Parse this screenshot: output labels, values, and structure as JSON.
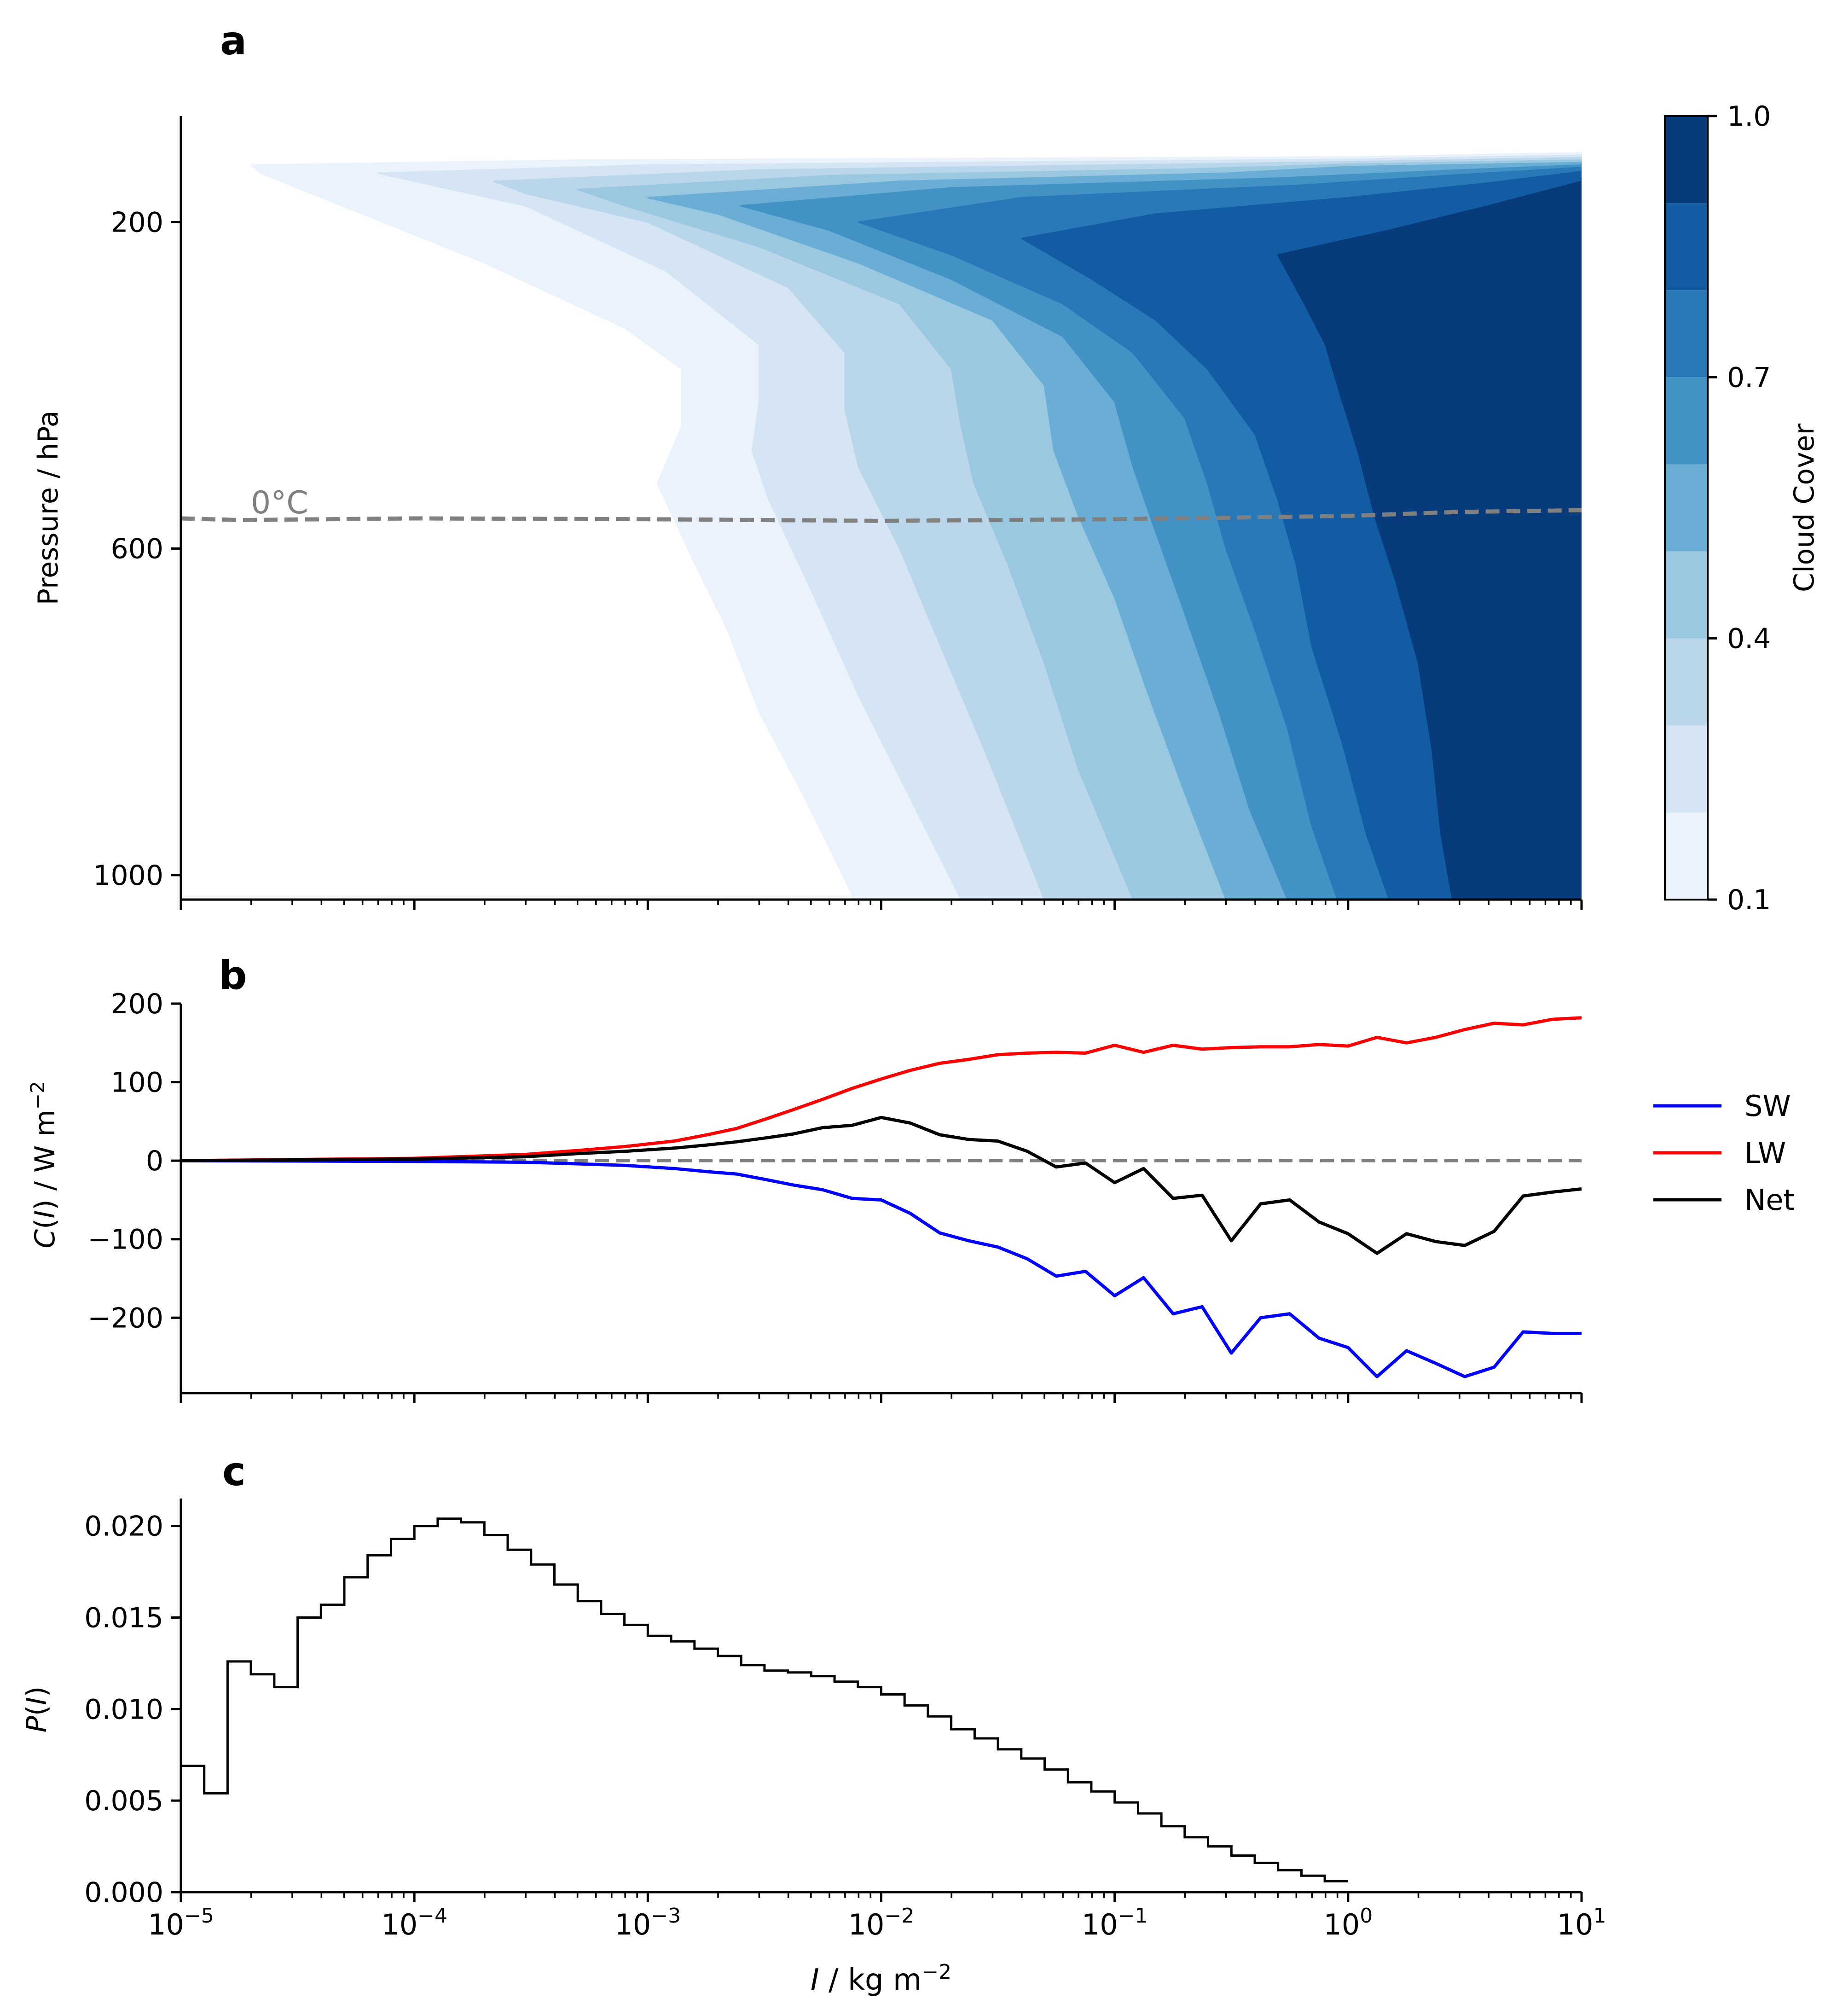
{
  "chart_data": [
    {
      "panel": "a",
      "type": "heatmap",
      "panel_label": "a",
      "ylabel": "Pressure / hPa",
      "yticks": [
        "200",
        "600",
        "1000"
      ],
      "ytick_values": [
        200,
        600,
        1000
      ],
      "ylim": [
        70,
        1030
      ],
      "xscale": "log",
      "xlim": [
        1e-05,
        10
      ],
      "colorbar": {
        "label": "Cloud Cover",
        "ticks": [
          "0.1",
          "0.4",
          "0.7",
          "1.0"
        ],
        "tick_values": [
          0.1,
          0.4,
          0.7,
          1.0
        ],
        "levels": [
          0.1,
          0.2,
          0.3,
          0.4,
          0.5,
          0.6,
          0.7,
          0.8,
          0.9,
          1.0
        ],
        "colors": [
          "#eaf2fb",
          "#d5e5f4",
          "#bad6eb",
          "#9ac8e0",
          "#6aaed6",
          "#4292c6",
          "#2979b9",
          "#125ca4",
          "#083b7b"
        ]
      },
      "freezing_label": "0°C",
      "freezing_line": {
        "x": [
          1e-05,
          1.78e-05,
          0.0001,
          0.001,
          0.01,
          0.1,
          1,
          3,
          10
        ],
        "p": [
          563,
          565,
          563,
          564,
          566,
          564,
          560,
          555,
          553
        ]
      },
      "contours": [
        {
          "level": 0.1,
          "left_edge": [
            [
              130,
              2e-05
            ],
            [
              140,
              2.2e-05
            ],
            [
              170,
              4e-05
            ],
            [
              250,
              0.0002
            ],
            [
              330,
              0.0008
            ],
            [
              380,
              0.0014
            ],
            [
              450,
              0.0014
            ],
            [
              520,
              0.0011
            ],
            [
              620,
              0.0016
            ],
            [
              700,
              0.0022
            ],
            [
              800,
              0.003
            ],
            [
              900,
              0.0046
            ],
            [
              1030,
              0.0077
            ]
          ],
          "top": [
            [
              130,
              2e-05
            ],
            [
              124,
              0.0005
            ],
            [
              122,
              0.02
            ],
            [
              120,
              1
            ],
            [
              115,
              10
            ]
          ]
        },
        {
          "level": 0.2,
          "left_edge": [
            [
              140,
              7e-05
            ],
            [
              150,
              0.0001
            ],
            [
              180,
              0.0003
            ],
            [
              260,
              0.0012
            ],
            [
              350,
              0.003
            ],
            [
              420,
              0.003
            ],
            [
              480,
              0.0028
            ],
            [
              540,
              0.0033
            ],
            [
              650,
              0.005
            ],
            [
              780,
              0.008
            ],
            [
              900,
              0.013
            ],
            [
              1030,
              0.022
            ]
          ],
          "top": [
            [
              140,
              7e-05
            ],
            [
              130,
              0.001
            ],
            [
              126,
              0.05
            ],
            [
              123,
              1
            ],
            [
              118,
              10
            ]
          ]
        },
        {
          "level": 0.3,
          "left_edge": [
            [
              150,
              0.00022
            ],
            [
              165,
              0.0003
            ],
            [
              200,
              0.001
            ],
            [
              280,
              0.004
            ],
            [
              360,
              0.007
            ],
            [
              430,
              0.007
            ],
            [
              500,
              0.008
            ],
            [
              600,
              0.012
            ],
            [
              720,
              0.018
            ],
            [
              850,
              0.028
            ],
            [
              1030,
              0.05
            ]
          ],
          "top": [
            [
              150,
              0.00022
            ],
            [
              136,
              0.003
            ],
            [
              130,
              0.1
            ],
            [
              126,
              1
            ],
            [
              121,
              10
            ]
          ]
        },
        {
          "level": 0.4,
          "left_edge": [
            [
              160,
              0.0005
            ],
            [
              180,
              0.0008
            ],
            [
              230,
              0.003
            ],
            [
              300,
              0.012
            ],
            [
              380,
              0.02
            ],
            [
              450,
              0.022
            ],
            [
              520,
              0.025
            ],
            [
              620,
              0.035
            ],
            [
              740,
              0.05
            ],
            [
              870,
              0.07
            ],
            [
              1030,
              0.12
            ]
          ],
          "top": [
            [
              160,
              0.0005
            ],
            [
              143,
              0.006
            ],
            [
              135,
              0.2
            ],
            [
              129,
              1
            ],
            [
              124,
              10
            ]
          ]
        },
        {
          "level": 0.5,
          "left_edge": [
            [
              170,
              0.001
            ],
            [
              190,
              0.002
            ],
            [
              250,
              0.008
            ],
            [
              320,
              0.03
            ],
            [
              400,
              0.05
            ],
            [
              480,
              0.055
            ],
            [
              560,
              0.07
            ],
            [
              660,
              0.1
            ],
            [
              780,
              0.14
            ],
            [
              900,
              0.2
            ],
            [
              1030,
              0.3
            ]
          ],
          "top": [
            [
              170,
              0.001
            ],
            [
              150,
              0.012
            ],
            [
              140,
              0.3
            ],
            [
              132,
              1
            ],
            [
              127,
              10
            ]
          ]
        },
        {
          "level": 0.6,
          "left_edge": [
            [
              180,
              0.0025
            ],
            [
              210,
              0.006
            ],
            [
              270,
              0.02
            ],
            [
              340,
              0.06
            ],
            [
              420,
              0.1
            ],
            [
              500,
              0.12
            ],
            [
              580,
              0.15
            ],
            [
              680,
              0.2
            ],
            [
              800,
              0.28
            ],
            [
              920,
              0.38
            ],
            [
              1030,
              0.55
            ]
          ],
          "top": [
            [
              180,
              0.0025
            ],
            [
              158,
              0.02
            ],
            [
              146,
              0.5
            ],
            [
              136,
              3
            ],
            [
              130,
              10
            ]
          ]
        },
        {
          "level": 0.7,
          "left_edge": [
            [
              200,
              0.008
            ],
            [
              240,
              0.02
            ],
            [
              300,
              0.06
            ],
            [
              360,
              0.12
            ],
            [
              440,
              0.2
            ],
            [
              520,
              0.25
            ],
            [
              600,
              0.3
            ],
            [
              700,
              0.4
            ],
            [
              820,
              0.55
            ],
            [
              940,
              0.7
            ],
            [
              1030,
              0.9
            ]
          ],
          "top": [
            [
              200,
              0.008
            ],
            [
              170,
              0.04
            ],
            [
              155,
              0.6
            ],
            [
              142,
              3
            ],
            [
              133,
              10
            ]
          ]
        },
        {
          "level": 0.8,
          "left_edge": [
            [
              220,
              0.04
            ],
            [
              270,
              0.08
            ],
            [
              320,
              0.15
            ],
            [
              380,
              0.25
            ],
            [
              460,
              0.4
            ],
            [
              540,
              0.5
            ],
            [
              620,
              0.6
            ],
            [
              720,
              0.7
            ],
            [
              840,
              0.95
            ],
            [
              950,
              1.2
            ],
            [
              1030,
              1.5
            ]
          ],
          "top": [
            [
              220,
              0.04
            ],
            [
              190,
              0.15
            ],
            [
              170,
              1
            ],
            [
              152,
              4
            ],
            [
              138,
              10
            ]
          ]
        },
        {
          "level": 0.9,
          "left_edge": [
            [
              240,
              0.5
            ],
            [
              300,
              0.65
            ],
            [
              350,
              0.8
            ],
            [
              400,
              0.9
            ],
            [
              480,
              1.1
            ],
            [
              560,
              1.3
            ],
            [
              640,
              1.6
            ],
            [
              740,
              2
            ],
            [
              850,
              2.3
            ],
            [
              950,
              2.5
            ],
            [
              1030,
              2.8
            ]
          ],
          "top": [
            [
              240,
              0.5
            ],
            [
              210,
              1.5
            ],
            [
              180,
              4
            ],
            [
              150,
              10
            ]
          ]
        }
      ]
    },
    {
      "panel": "b",
      "type": "line",
      "panel_label": "b",
      "ylabel": "C(I) / W m",
      "ylabel_italic": "I",
      "ylabel_sup": "−2",
      "yticks": [
        "200",
        "100",
        "0",
        "−100",
        "−200"
      ],
      "ytick_values": [
        200,
        100,
        0,
        -100,
        -200
      ],
      "ylim": [
        -296,
        200
      ],
      "xscale": "log",
      "xlim": [
        1e-05,
        10
      ],
      "zero_line": true,
      "legend_location": "right, outside",
      "series": [
        {
          "name": "SW",
          "color": "#0000ff",
          "x": [
            1e-05,
            0.0001,
            0.0003,
            0.0005,
            0.0008,
            0.0013,
            0.0018,
            0.0024,
            0.0032,
            0.0042,
            0.0056,
            0.0075,
            0.01,
            0.0133,
            0.0178,
            0.0237,
            0.0316,
            0.0422,
            0.0562,
            0.075,
            0.1,
            0.133,
            0.178,
            0.237,
            0.316,
            0.422,
            0.562,
            0.75,
            1.0,
            1.33,
            1.78,
            2.37,
            3.16,
            4.22,
            5.62,
            7.5,
            10
          ],
          "y": [
            0,
            -1,
            -2,
            -4,
            -6,
            -10,
            -14,
            -17,
            -24,
            -31,
            -37,
            -48,
            -50,
            -67,
            -92,
            -102,
            -110,
            -125,
            -147,
            -141,
            -172,
            -149,
            -195,
            -186,
            -245,
            -200,
            -195,
            -226,
            -238,
            -275,
            -242,
            -258,
            -275,
            -263,
            -218,
            -220,
            -220
          ]
        },
        {
          "name": "LW",
          "color": "#ff0000",
          "x": [
            1e-05,
            0.0001,
            0.0003,
            0.0005,
            0.0008,
            0.0013,
            0.0018,
            0.0024,
            0.0032,
            0.0042,
            0.0056,
            0.0075,
            0.01,
            0.0133,
            0.0178,
            0.0237,
            0.0316,
            0.0422,
            0.0562,
            0.075,
            0.1,
            0.133,
            0.178,
            0.237,
            0.316,
            0.422,
            0.562,
            0.75,
            1.0,
            1.33,
            1.78,
            2.37,
            3.16,
            4.22,
            5.62,
            7.5,
            10
          ],
          "y": [
            0,
            3,
            8,
            13,
            18,
            25,
            33,
            41,
            53,
            65,
            78,
            92,
            104,
            115,
            124,
            129,
            135,
            137,
            138,
            137,
            147,
            138,
            147,
            142,
            144,
            145,
            145,
            148,
            146,
            157,
            150,
            157,
            167,
            175,
            173,
            180,
            182
          ]
        },
        {
          "name": "Net",
          "color": "#000000",
          "x": [
            1e-05,
            0.0001,
            0.0003,
            0.0005,
            0.0008,
            0.0013,
            0.0018,
            0.0024,
            0.0032,
            0.0042,
            0.0056,
            0.0075,
            0.01,
            0.0133,
            0.0178,
            0.0237,
            0.0316,
            0.0422,
            0.0562,
            0.075,
            0.1,
            0.133,
            0.178,
            0.237,
            0.316,
            0.422,
            0.562,
            0.75,
            1.0,
            1.33,
            1.78,
            2.37,
            3.16,
            4.22,
            5.62,
            7.5,
            10
          ],
          "y": [
            0,
            2,
            5,
            9,
            12,
            16,
            20,
            24,
            29,
            34,
            42,
            45,
            55,
            48,
            33,
            27,
            25,
            12,
            -8,
            -3,
            -28,
            -10,
            -48,
            -44,
            -102,
            -55,
            -50,
            -78,
            -93,
            -118,
            -93,
            -103,
            -108,
            -90,
            -45,
            -40,
            -36
          ]
        }
      ]
    },
    {
      "panel": "c",
      "type": "bar",
      "panel_label": "c",
      "ylabel": "P(I)",
      "ylabel_italic": "I",
      "yticks": [
        "0.000",
        "0.005",
        "0.010",
        "0.015",
        "0.020"
      ],
      "ytick_values": [
        0,
        0.005,
        0.01,
        0.015,
        0.02
      ],
      "ylim": [
        0,
        0.0215
      ],
      "xscale": "log",
      "xlim": [
        1e-05,
        10
      ],
      "xlabel": "I / kg m",
      "xlabel_italic": "I",
      "xlabel_sup": "−2",
      "xtick_values": [
        1e-05,
        0.0001,
        0.001,
        0.01,
        0.1,
        1,
        10
      ],
      "xticks": [
        [
          "10",
          "−5"
        ],
        [
          "10",
          "−4"
        ],
        [
          "10",
          "−3"
        ],
        [
          "10",
          "−2"
        ],
        [
          "10",
          "−1"
        ],
        [
          "10",
          "0"
        ],
        [
          "10",
          "1"
        ]
      ],
      "bins_per_decade": 10,
      "values": [
        0.0069,
        0.0054,
        0.0126,
        0.0119,
        0.0112,
        0.015,
        0.0157,
        0.0172,
        0.0184,
        0.0193,
        0.02,
        0.0204,
        0.0202,
        0.0195,
        0.0187,
        0.0179,
        0.0168,
        0.0159,
        0.0152,
        0.0146,
        0.014,
        0.0137,
        0.0133,
        0.0129,
        0.0124,
        0.0121,
        0.012,
        0.0118,
        0.0115,
        0.0112,
        0.0108,
        0.0102,
        0.0096,
        0.0089,
        0.0084,
        0.0078,
        0.0073,
        0.0067,
        0.006,
        0.0055,
        0.0049,
        0.0043,
        0.0036,
        0.003,
        0.0025,
        0.002,
        0.0016,
        0.0012,
        0.0009,
        0.0006
      ]
    }
  ]
}
